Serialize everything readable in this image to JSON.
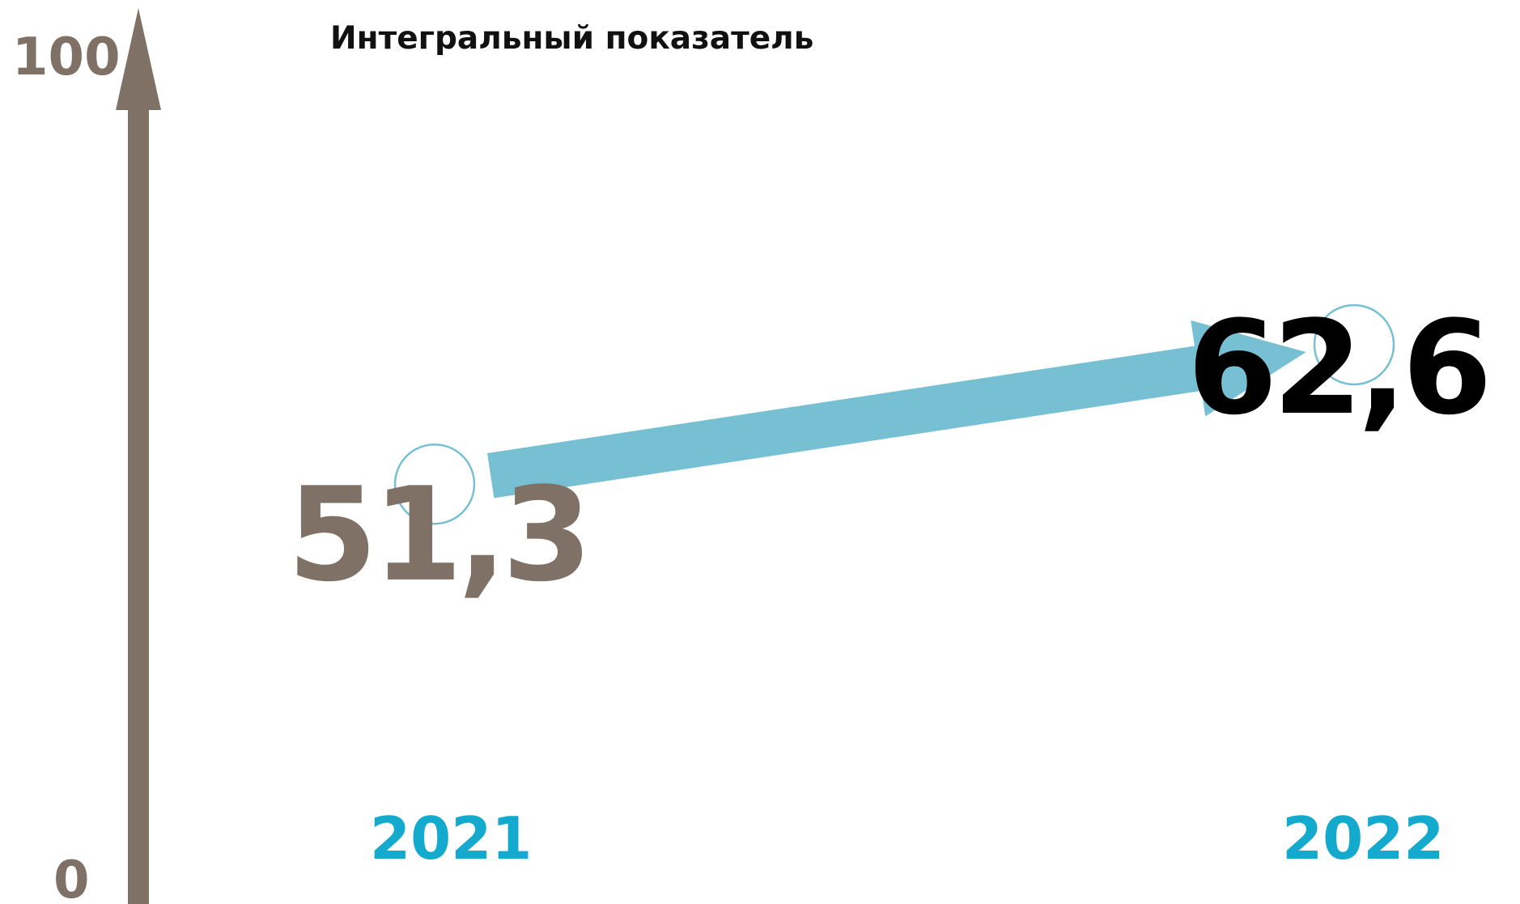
{
  "chart_data": {
    "type": "line",
    "title": "Интегральный показатель",
    "x": [
      "2021",
      "2022"
    ],
    "series": [
      {
        "values": [
          51.3,
          62.6
        ],
        "value_labels": [
          "51,3",
          "62,6"
        ]
      }
    ],
    "ylim": [
      0,
      100
    ],
    "y_ticks": [
      "0",
      "100"
    ],
    "grid": false,
    "colors": {
      "axis": "#7f7166",
      "arrow": "#77bfd3",
      "marker_stroke": "#77bfd3",
      "year_label": "#13aace",
      "value_first": "#7f7166",
      "value_last": "#000000",
      "title": "#111111"
    }
  }
}
